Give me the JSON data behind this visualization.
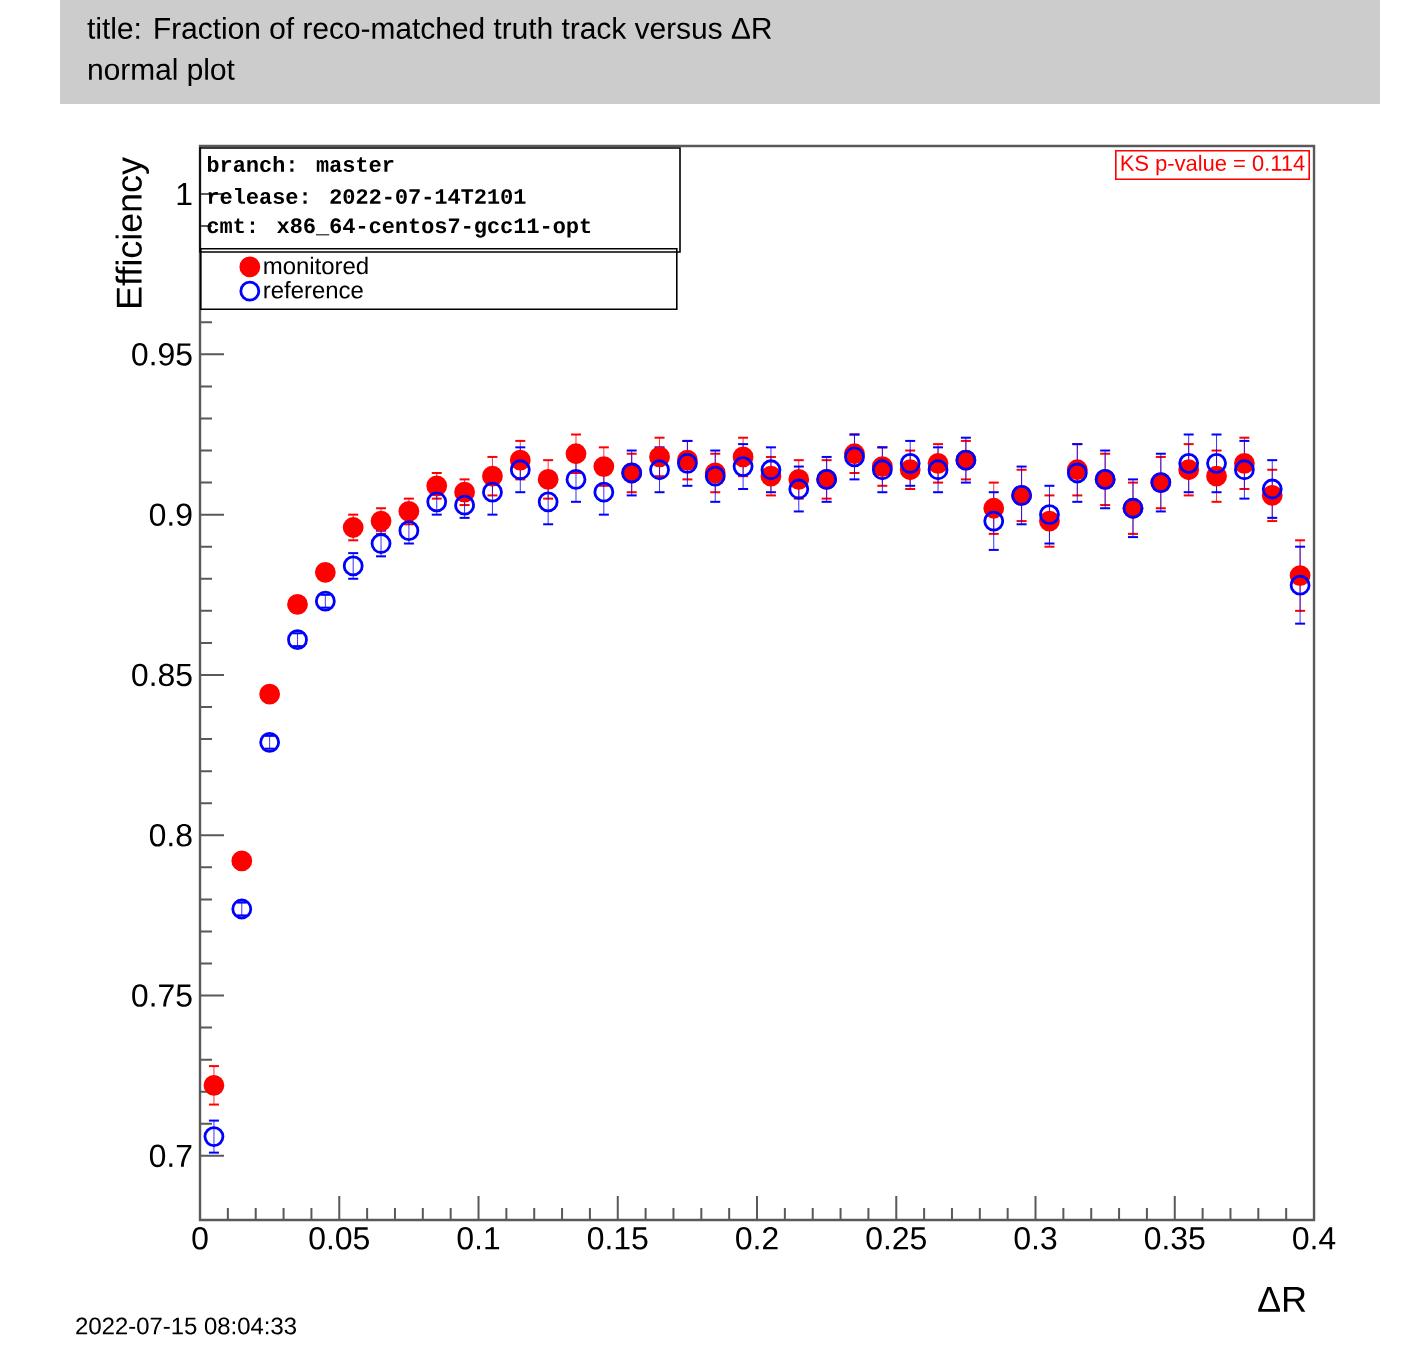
{
  "chart_data": {
    "type": "scatter",
    "title": "title: Fraction of reco-matched truth track versus ΔR",
    "subtitle": "normal plot",
    "xlabel": "ΔR",
    "ylabel": "Efficiency",
    "x": [
      0.005,
      0.015,
      0.025,
      0.035,
      0.045,
      0.055,
      0.065,
      0.075,
      0.085,
      0.095,
      0.105,
      0.115,
      0.125,
      0.135,
      0.145,
      0.155,
      0.165,
      0.175,
      0.185,
      0.195,
      0.205,
      0.215,
      0.225,
      0.235,
      0.245,
      0.255,
      0.265,
      0.275,
      0.285,
      0.295,
      0.305,
      0.315,
      0.325,
      0.335,
      0.345,
      0.355,
      0.365,
      0.375,
      0.385,
      0.395
    ],
    "series": [
      {
        "name": "monitored",
        "color": "#ff0000",
        "marker": "circle",
        "values": [
          0.722,
          0.792,
          0.844,
          0.872,
          0.882,
          0.896,
          0.898,
          0.901,
          0.909,
          0.907,
          0.912,
          0.917,
          0.911,
          0.919,
          0.915,
          0.913,
          0.918,
          0.917,
          0.913,
          0.918,
          0.912,
          0.911,
          0.911,
          0.919,
          0.915,
          0.914,
          0.916,
          0.917,
          0.902,
          0.906,
          0.898,
          0.914,
          0.911,
          0.902,
          0.91,
          0.914,
          0.912,
          0.916,
          0.906,
          0.881
        ],
        "errors": [
          0.006,
          0.002,
          0.002,
          0.002,
          0.002,
          0.004,
          0.004,
          0.004,
          0.004,
          0.004,
          0.006,
          0.006,
          0.006,
          0.006,
          0.006,
          0.006,
          0.006,
          0.006,
          0.006,
          0.006,
          0.006,
          0.006,
          0.006,
          0.006,
          0.006,
          0.006,
          0.006,
          0.006,
          0.008,
          0.008,
          0.008,
          0.008,
          0.008,
          0.008,
          0.008,
          0.008,
          0.008,
          0.008,
          0.008,
          0.011
        ]
      },
      {
        "name": "reference",
        "color": "#0000ff",
        "marker": "circle",
        "values": [
          0.706,
          0.777,
          0.829,
          0.861,
          0.873,
          0.884,
          0.891,
          0.895,
          0.904,
          0.903,
          0.907,
          0.914,
          0.904,
          0.911,
          0.907,
          0.913,
          0.914,
          0.916,
          0.912,
          0.915,
          0.914,
          0.908,
          0.911,
          0.918,
          0.914,
          0.916,
          0.914,
          0.917,
          0.898,
          0.906,
          0.9,
          0.913,
          0.911,
          0.902,
          0.91,
          0.916,
          0.916,
          0.914,
          0.908,
          0.878
        ],
        "errors": [
          0.005,
          0.002,
          0.002,
          0.002,
          0.002,
          0.004,
          0.004,
          0.004,
          0.004,
          0.004,
          0.007,
          0.007,
          0.007,
          0.007,
          0.007,
          0.007,
          0.007,
          0.007,
          0.008,
          0.007,
          0.007,
          0.007,
          0.007,
          0.007,
          0.007,
          0.007,
          0.007,
          0.007,
          0.009,
          0.009,
          0.009,
          0.009,
          0.009,
          0.009,
          0.009,
          0.009,
          0.009,
          0.009,
          0.009,
          0.012
        ]
      }
    ],
    "xlim": [
      0,
      0.4
    ],
    "xticks": [
      0,
      0.05,
      0.1,
      0.15,
      0.2,
      0.25,
      0.3,
      0.35,
      0.4
    ],
    "ylim": [
      0.68,
      1.015
    ],
    "yticks": [
      0.7,
      0.75,
      0.8,
      0.85,
      0.9,
      0.95,
      1
    ],
    "legend": "top left",
    "annotations": [
      "branch:  master",
      "release: 2022-07-14T2101",
      "cmt:   x86_64-centos7-gcc11-opt",
      "KS  p-value = 0.114",
      "2022-07-15 08:04:33"
    ]
  }
}
